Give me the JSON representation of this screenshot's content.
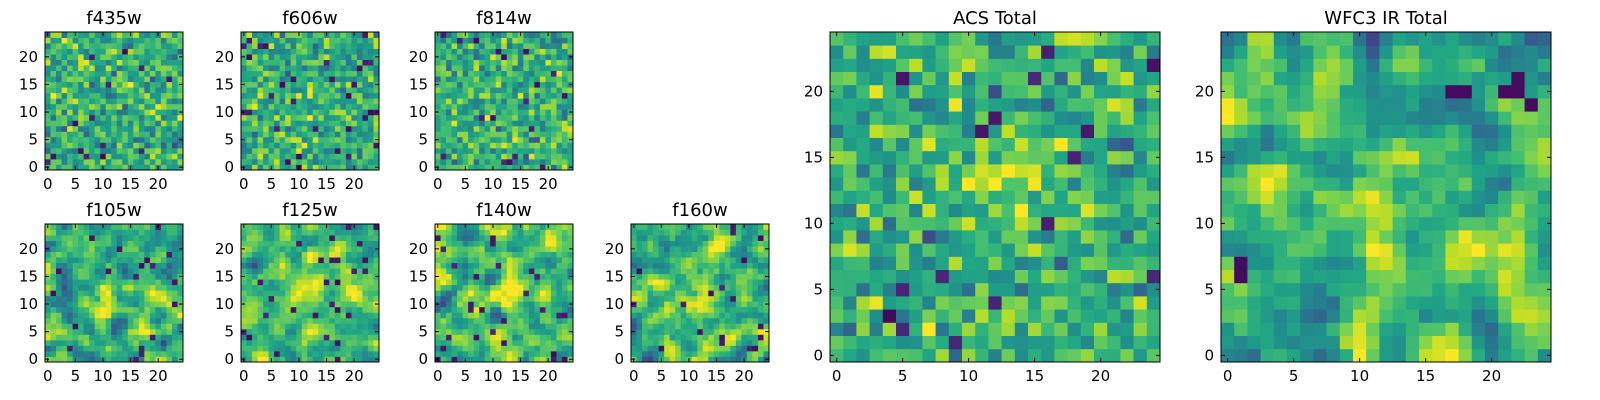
{
  "figure": {
    "panels_order": [
      "f435w",
      "f606w",
      "f814w",
      "f105w",
      "f125w",
      "f140w",
      "f160w",
      "ACS Total",
      "WFC3 IR Total"
    ]
  },
  "chart_data": [
    {
      "type": "heatmap",
      "title": "f435w",
      "colormap": "viridis",
      "xlim": [
        -0.5,
        24.5
      ],
      "ylim": [
        -0.5,
        24.5
      ],
      "xticks": [
        "0",
        "5",
        "10",
        "15",
        "20"
      ],
      "yticks": [
        "0",
        "5",
        "10",
        "15",
        "20"
      ],
      "shape": [
        25,
        25
      ],
      "seed": 11,
      "smooth": 0,
      "dark_fraction": 0.04,
      "hot_center": null
    },
    {
      "type": "heatmap",
      "title": "f606w",
      "colormap": "viridis",
      "xlim": [
        -0.5,
        24.5
      ],
      "ylim": [
        -0.5,
        24.5
      ],
      "xticks": [
        "0",
        "5",
        "10",
        "15",
        "20"
      ],
      "yticks": [
        "0",
        "5",
        "10",
        "15",
        "20"
      ],
      "shape": [
        25,
        25
      ],
      "seed": 23,
      "smooth": 0,
      "dark_fraction": 0.04,
      "hot_center": null
    },
    {
      "type": "heatmap",
      "title": "f814w",
      "colormap": "viridis",
      "xlim": [
        -0.5,
        24.5
      ],
      "ylim": [
        -0.5,
        24.5
      ],
      "xticks": [
        "0",
        "5",
        "10",
        "15",
        "20"
      ],
      "yticks": [
        "0",
        "5",
        "10",
        "15",
        "20"
      ],
      "shape": [
        25,
        25
      ],
      "seed": 37,
      "smooth": 0,
      "dark_fraction": 0.03,
      "hot_center": null
    },
    {
      "type": "heatmap",
      "title": "f105w",
      "colormap": "viridis",
      "xlim": [
        -0.5,
        24.5
      ],
      "ylim": [
        -0.5,
        24.5
      ],
      "xticks": [
        "0",
        "5",
        "10",
        "15",
        "20"
      ],
      "yticks": [
        "0",
        "5",
        "10",
        "15",
        "20"
      ],
      "shape": [
        25,
        25
      ],
      "seed": 41,
      "smooth": 1,
      "dark_fraction": 0.03,
      "hot_center": [
        12,
        11
      ]
    },
    {
      "type": "heatmap",
      "title": "f125w",
      "colormap": "viridis",
      "xlim": [
        -0.5,
        24.5
      ],
      "ylim": [
        -0.5,
        24.5
      ],
      "xticks": [
        "0",
        "5",
        "10",
        "15",
        "20"
      ],
      "yticks": [
        "0",
        "5",
        "10",
        "15",
        "20"
      ],
      "shape": [
        25,
        25
      ],
      "seed": 53,
      "smooth": 1,
      "dark_fraction": 0.05,
      "hot_center": [
        11,
        12
      ]
    },
    {
      "type": "heatmap",
      "title": "f140w",
      "colormap": "viridis",
      "xlim": [
        -0.5,
        24.5
      ],
      "ylim": [
        -0.5,
        24.5
      ],
      "xticks": [
        "0",
        "5",
        "10",
        "15",
        "20"
      ],
      "yticks": [
        "0",
        "5",
        "10",
        "15",
        "20"
      ],
      "shape": [
        25,
        25
      ],
      "seed": 67,
      "smooth": 1,
      "dark_fraction": 0.04,
      "hot_center": [
        12,
        12
      ]
    },
    {
      "type": "heatmap",
      "title": "f160w",
      "colormap": "viridis",
      "xlim": [
        -0.5,
        24.5
      ],
      "ylim": [
        -0.5,
        24.5
      ],
      "xticks": [
        "0",
        "5",
        "10",
        "15",
        "20"
      ],
      "yticks": [
        "0",
        "5",
        "10",
        "15",
        "20"
      ],
      "shape": [
        25,
        25
      ],
      "seed": 79,
      "smooth": 1,
      "dark_fraction": 0.04,
      "hot_center": [
        12,
        11
      ]
    },
    {
      "type": "heatmap",
      "title": "ACS Total",
      "colormap": "viridis",
      "xlim": [
        -0.5,
        24.5
      ],
      "ylim": [
        -0.5,
        24.5
      ],
      "xticks": [
        "0",
        "5",
        "10",
        "15",
        "20"
      ],
      "yticks": [
        "0",
        "5",
        "10",
        "15",
        "20"
      ],
      "shape": [
        25,
        25
      ],
      "seed": 97,
      "smooth": 0,
      "dark_fraction": 0.025,
      "hot_center": [
        13,
        13
      ]
    },
    {
      "type": "heatmap",
      "title": "WFC3 IR Total",
      "colormap": "viridis",
      "xlim": [
        -0.5,
        24.5
      ],
      "ylim": [
        -0.5,
        24.5
      ],
      "xticks": [
        "0",
        "5",
        "10",
        "15",
        "20"
      ],
      "yticks": [
        "0",
        "5",
        "10",
        "15",
        "20"
      ],
      "shape": [
        25,
        25
      ],
      "seed": 131,
      "smooth": 1,
      "dark_fraction": 0.0,
      "hot_center": [
        11,
        12
      ],
      "dark_spots": [
        [
          17,
          20
        ],
        [
          18,
          20
        ],
        [
          21,
          20
        ],
        [
          22,
          21
        ],
        [
          22,
          20
        ],
        [
          23,
          19
        ],
        [
          1,
          7
        ],
        [
          1,
          6
        ]
      ]
    }
  ]
}
